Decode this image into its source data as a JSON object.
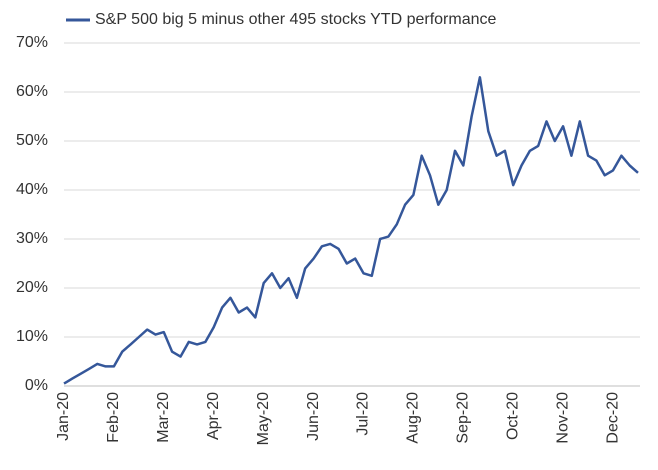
{
  "chart_data": {
    "type": "line",
    "categories": [
      "Jan-20",
      null,
      null,
      null,
      null,
      null,
      "Feb-20",
      null,
      null,
      null,
      null,
      null,
      "Mar-20",
      null,
      null,
      null,
      null,
      null,
      "Apr-20",
      null,
      null,
      null,
      null,
      null,
      "May-20",
      null,
      null,
      null,
      null,
      null,
      "Jun-20",
      null,
      null,
      null,
      null,
      null,
      "Jul-20",
      null,
      null,
      null,
      null,
      null,
      "Aug-20",
      null,
      null,
      null,
      null,
      null,
      "Sep-20",
      null,
      null,
      null,
      null,
      null,
      "Oct-20",
      null,
      null,
      null,
      null,
      null,
      "Nov-20",
      null,
      null,
      null,
      null,
      null,
      "Dec-20",
      null,
      null,
      null
    ],
    "series": [
      {
        "name": "S&P 500 big 5 minus other 495 stocks YTD performance",
        "color": "#35579a",
        "values": [
          0.5,
          1.5,
          2.5,
          3.5,
          4.5,
          4,
          4,
          7,
          8.5,
          10,
          11.5,
          10.5,
          11,
          7,
          6,
          9,
          8.5,
          9,
          12,
          16,
          18,
          15,
          16,
          14,
          21,
          23,
          20,
          22,
          18,
          24,
          26,
          28.5,
          29,
          28,
          25,
          26,
          23,
          22.5,
          30,
          30.5,
          33,
          37,
          39,
          47,
          43,
          37,
          40,
          48,
          45,
          55,
          63,
          52,
          47,
          48,
          41,
          45,
          48,
          49,
          54,
          50,
          53,
          47,
          54,
          47,
          46,
          43,
          44,
          47,
          45,
          43.5
        ]
      }
    ],
    "ylim": [
      0,
      70
    ],
    "yticks": [
      {
        "value": 0,
        "label": "0%"
      },
      {
        "value": 10,
        "label": "10%"
      },
      {
        "value": 20,
        "label": "20%"
      },
      {
        "value": 30,
        "label": "30%"
      },
      {
        "value": 40,
        "label": "40%"
      },
      {
        "value": 50,
        "label": "50%"
      },
      {
        "value": 60,
        "label": "60%"
      },
      {
        "value": 70,
        "label": "70%"
      }
    ],
    "grid": true,
    "legend": "top"
  }
}
